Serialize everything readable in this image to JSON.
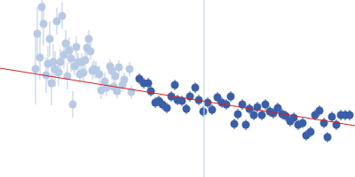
{
  "chart_data": {
    "type": "scatter",
    "xlim": [
      0,
      400
    ],
    "ylim": [
      0,
      200
    ],
    "tick_labels": false,
    "grid": false,
    "series": [
      {
        "type": "scatter",
        "marker": "circle",
        "color": "#b7c9e4",
        "x": [
          40,
          42,
          45,
          47,
          49,
          52,
          54,
          56,
          58,
          60,
          62,
          64,
          66,
          68,
          70,
          72,
          74,
          76,
          78,
          80,
          82,
          84,
          86,
          88,
          90,
          92,
          94,
          96,
          98,
          100,
          102,
          104,
          106,
          108,
          112,
          114,
          118,
          120,
          124,
          126,
          128,
          130,
          132,
          134,
          138,
          140,
          146,
          148
        ],
        "y": [
          122,
          162,
          135,
          192,
          173,
          115,
          128,
          156,
          106,
          130,
          122,
          176,
          118,
          130,
          182,
          138,
          151,
          114,
          143,
          134,
          82,
          125,
          147,
          130,
          116,
          130,
          118,
          132,
          146,
          156,
          142,
          120,
          122,
          121,
          116,
          98,
          108,
          101,
          125,
          120,
          102,
          114,
          97,
          124,
          104,
          110,
          122,
          96
        ],
        "error": [
          40,
          30,
          25,
          20,
          25,
          20,
          20,
          20,
          25,
          20,
          20,
          15,
          15,
          15,
          15,
          15,
          15,
          15,
          15,
          15,
          15,
          10,
          12,
          10,
          10,
          10,
          10,
          10,
          10,
          10,
          10,
          10,
          10,
          10,
          10,
          10,
          10,
          10,
          8,
          10,
          8,
          8,
          8,
          8,
          8,
          8,
          8,
          8
        ]
      },
      {
        "type": "scatter",
        "marker": "circle",
        "color": "#3a5fa8",
        "x": [
          157,
          162,
          167,
          170,
          175,
          179,
          183,
          188,
          193,
          197,
          200,
          205,
          210,
          214,
          220,
          224,
          229,
          234,
          239,
          245,
          250,
          255,
          260,
          264,
          268,
          273,
          277,
          281,
          286,
          290,
          295,
          299,
          304,
          308,
          313,
          318,
          322,
          327,
          331,
          336,
          341,
          345,
          350,
          355,
          360,
          365,
          369,
          374,
          379,
          384,
          389,
          394
        ],
        "y": [
          111,
          106,
          106,
          97,
          84,
          86,
          82,
          78,
          91,
          104,
          87,
          86,
          77,
          91,
          101,
          87,
          74,
          84,
          76,
          90,
          84,
          82,
          91,
          60,
          71,
          82,
          59,
          77,
          70,
          79,
          70,
          82,
          74,
          72,
          78,
          71,
          69,
          63,
          67,
          59,
          61,
          47,
          51,
          70,
          75,
          61,
          45,
          68,
          59,
          70,
          70,
          70
        ],
        "error": [
          6,
          6,
          6,
          6,
          6,
          6,
          6,
          6,
          6,
          6,
          6,
          6,
          6,
          6,
          6,
          6,
          6,
          6,
          6,
          6,
          6,
          6,
          6,
          6,
          6,
          6,
          6,
          6,
          6,
          6,
          6,
          6,
          6,
          6,
          6,
          6,
          6,
          6,
          6,
          6,
          6,
          6,
          6,
          6,
          6,
          6,
          6,
          6,
          6,
          6,
          6,
          6
        ]
      },
      {
        "type": "line",
        "line_style": "solid",
        "color": "#c5d5ec",
        "x": [
          230,
          230
        ],
        "y": [
          0,
          200
        ]
      },
      {
        "type": "line",
        "line_style": "solid",
        "color": "#d62020",
        "x": [
          0,
          400
        ],
        "y": [
          123,
          58
        ]
      }
    ]
  }
}
